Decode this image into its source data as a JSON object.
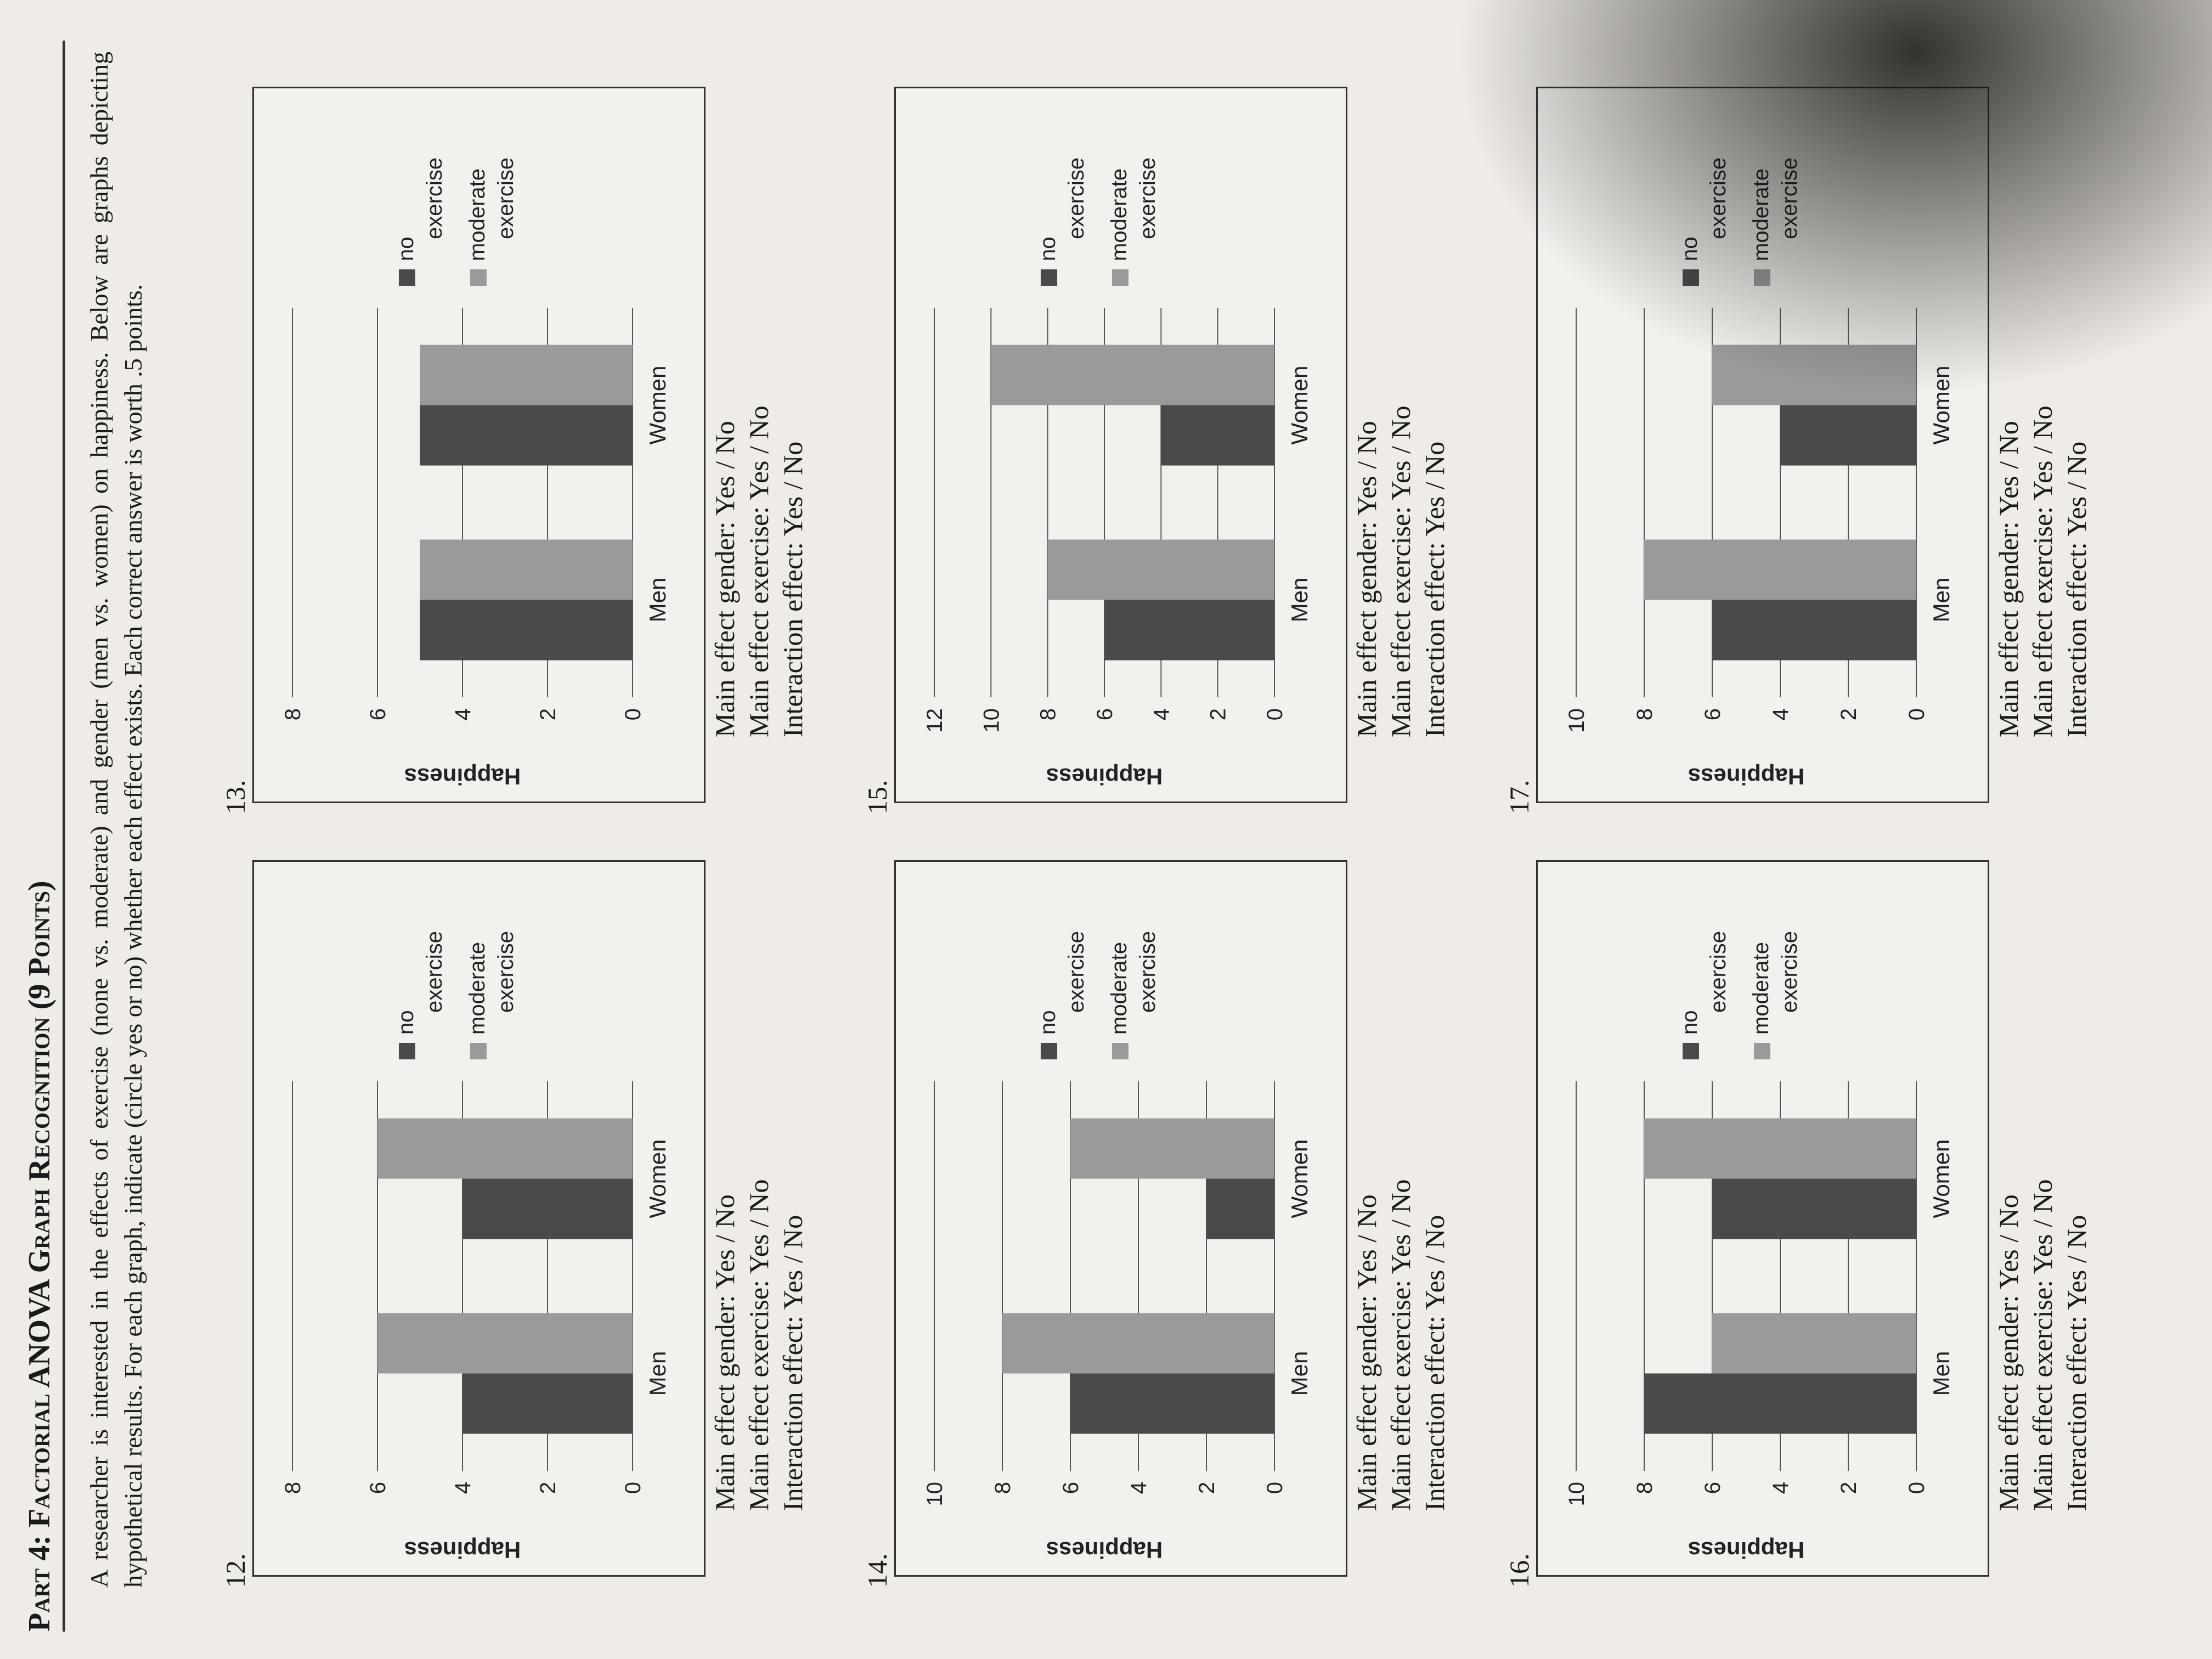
{
  "title": "Part 4: Factorial ANOVA Graph Recognition (9 Points)",
  "intro": "A researcher is interested in the effects of exercise (none vs. moderate) and gender (men vs. women) on happiness. Below are graphs depicting hypothetical results. For each graph, indicate (circle yes or no) whether each effect exists. Each correct answer is worth .5 points.",
  "questions": [
    {
      "number": "12.",
      "q1": "Main effect gender: Yes / No",
      "q2": "Main effect exercise: Yes / No",
      "q3": "Interaction effect: Yes / No"
    },
    {
      "number": "13.",
      "q1": "Main effect gender: Yes / No",
      "q2": "Main effect exercise: Yes / No",
      "q3": "Interaction effect: Yes / No"
    },
    {
      "number": "14.",
      "q1": "Main effect gender: Yes / No",
      "q2": "Main effect exercise: Yes / No",
      "q3": "Interaction effect: Yes / No"
    },
    {
      "number": "15.",
      "q1": "Main effect gender: Yes / No",
      "q2": "Main effect exercise: Yes / No",
      "q3": "Interaction effect: Yes / No"
    },
    {
      "number": "16.",
      "q1": "Main effect gender: Yes / No",
      "q2": "Main effect exercise: Yes / No",
      "q3": "Interaction effect: Yes / No"
    },
    {
      "number": "17.",
      "q1": "Main effect gender: Yes / No",
      "q2": "Main effect exercise: Yes / No",
      "q3": "Interaction effect: Yes / No"
    }
  ],
  "colors": {
    "no_exercise": "#4a4a4a",
    "moderate_exercise": "#9a9a9a"
  },
  "chart_data": [
    {
      "type": "bar",
      "categories": [
        "Men",
        "Women"
      ],
      "ylabel": "Happiness",
      "ylim": [
        0,
        8
      ],
      "yticks": [
        "0",
        "2",
        "4",
        "6",
        "8"
      ],
      "legend_position": "right",
      "series": [
        {
          "name": "no exercise",
          "values": [
            4,
            4
          ]
        },
        {
          "name": "moderate exercise",
          "values": [
            6,
            6
          ]
        }
      ]
    },
    {
      "type": "bar",
      "categories": [
        "Men",
        "Women"
      ],
      "ylabel": "Happiness",
      "ylim": [
        0,
        8
      ],
      "yticks": [
        "0",
        "2",
        "4",
        "6",
        "8"
      ],
      "legend_position": "right",
      "series": [
        {
          "name": "no exercise",
          "values": [
            5,
            5
          ]
        },
        {
          "name": "moderate exercise",
          "values": [
            5,
            5
          ]
        }
      ]
    },
    {
      "type": "bar",
      "categories": [
        "Men",
        "Women"
      ],
      "ylabel": "Happiness",
      "ylim": [
        0,
        10
      ],
      "yticks": [
        "0",
        "2",
        "4",
        "6",
        "8",
        "10"
      ],
      "legend_position": "right",
      "series": [
        {
          "name": "no exercise",
          "values": [
            6,
            2
          ]
        },
        {
          "name": "moderate exercise",
          "values": [
            8,
            6
          ]
        }
      ]
    },
    {
      "type": "bar",
      "categories": [
        "Men",
        "Women"
      ],
      "ylabel": "Happiness",
      "ylim": [
        0,
        12
      ],
      "yticks": [
        "0",
        "2",
        "4",
        "6",
        "8",
        "10",
        "12"
      ],
      "legend_position": "right",
      "series": [
        {
          "name": "no exercise",
          "values": [
            6,
            4
          ]
        },
        {
          "name": "moderate exercise",
          "values": [
            8,
            10
          ]
        }
      ]
    },
    {
      "type": "bar",
      "categories": [
        "Men",
        "Women"
      ],
      "ylabel": "Happiness",
      "ylim": [
        0,
        10
      ],
      "yticks": [
        "0",
        "2",
        "4",
        "6",
        "8",
        "10"
      ],
      "legend_position": "right",
      "series": [
        {
          "name": "no exercise",
          "values": [
            8,
            6
          ]
        },
        {
          "name": "moderate exercise",
          "values": [
            6,
            8
          ]
        }
      ]
    },
    {
      "type": "bar",
      "categories": [
        "Men",
        "Women"
      ],
      "ylabel": "Happiness",
      "ylim": [
        0,
        10
      ],
      "yticks": [
        "0",
        "2",
        "4",
        "6",
        "8",
        "10"
      ],
      "legend_position": "right",
      "series": [
        {
          "name": "no exercise",
          "values": [
            6,
            4
          ]
        },
        {
          "name": "moderate exercise",
          "values": [
            8,
            6
          ]
        }
      ]
    }
  ]
}
